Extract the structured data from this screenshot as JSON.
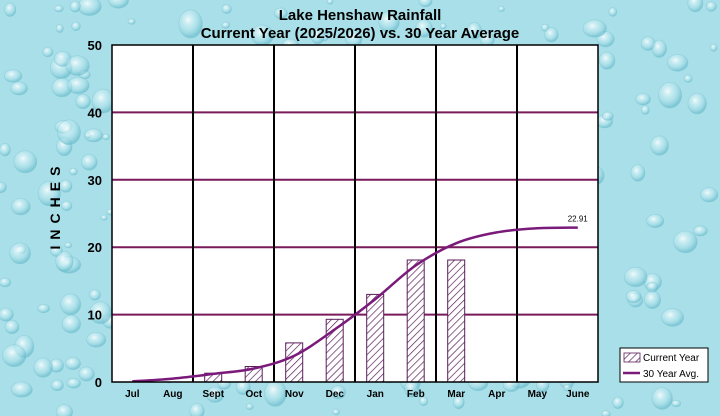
{
  "chart_data": {
    "type": "bar",
    "title": "Lake Henshaw Rainfall",
    "subtitle": "Current Year (2025/2026) vs. 30 Year Average",
    "ylabel": "INCHES",
    "xlabel": "",
    "ylim": [
      0,
      50
    ],
    "yticks": [
      "0",
      "10",
      "20",
      "30",
      "40",
      "50"
    ],
    "categories": [
      "Jul",
      "Aug",
      "Sept",
      "Oct",
      "Nov",
      "Dec",
      "Jan",
      "Feb",
      "Mar",
      "Apr",
      "May",
      "June"
    ],
    "grid": true,
    "legend_position": "bottom-right",
    "series": [
      {
        "name": "Current Year",
        "type": "bar",
        "pattern": "hatched",
        "color": "#5a1e5a",
        "values": [
          0,
          0,
          1.3,
          2.3,
          5.8,
          9.3,
          13.0,
          18.1,
          18.1,
          null,
          null,
          null
        ]
      },
      {
        "name": "30 Year Avg.",
        "type": "line",
        "color": "#7a1a7a",
        "values": [
          0.1,
          0.5,
          1.2,
          2.0,
          3.9,
          7.8,
          12.3,
          17.3,
          20.6,
          22.2,
          22.8,
          22.91
        ]
      }
    ],
    "annotations": [
      {
        "text": "22.91",
        "category": "June",
        "series": "30 Year Avg."
      }
    ]
  },
  "colors": {
    "plot_background": "#ffffff",
    "vertical_gridline": "#000000",
    "horizontal_gridline": "#7a1a5a",
    "page_background": "#a9dfe8"
  }
}
